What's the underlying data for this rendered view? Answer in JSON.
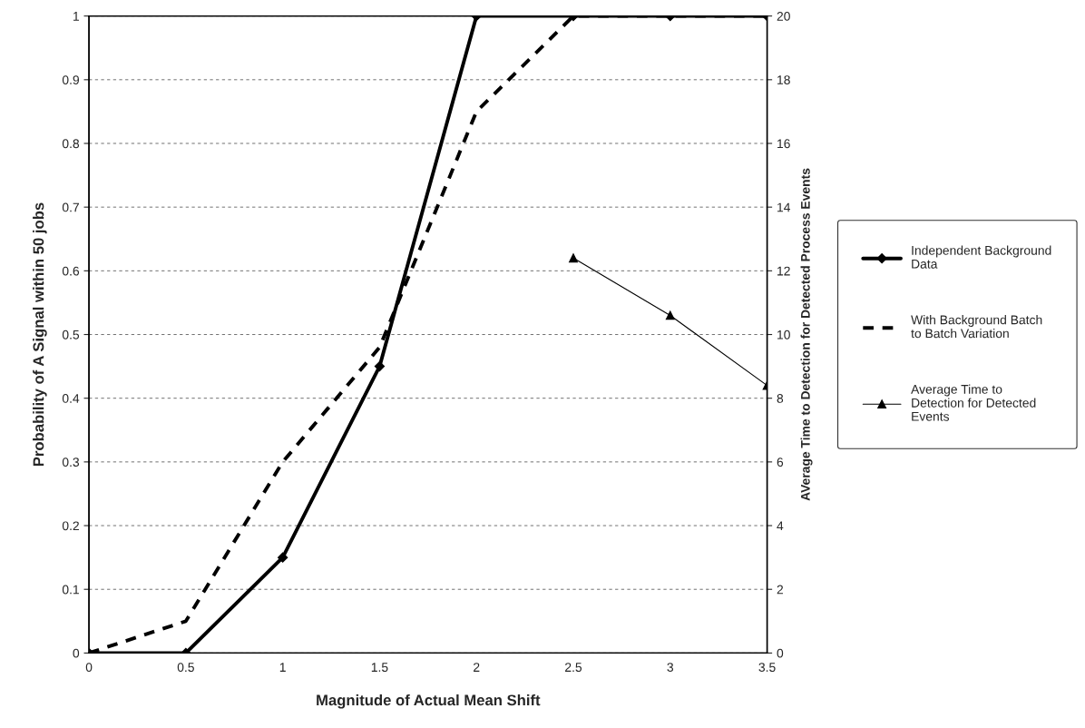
{
  "chart_data": {
    "type": "line",
    "xlabel": "Magnitude of Actual Mean Shift",
    "ylabel": "Probability of A Signal within 50 jobs",
    "y2label": "AVerage Time to Detection for Detected Process Events",
    "x": [
      0,
      0.5,
      1,
      1.5,
      2,
      2.5,
      3,
      3.5
    ],
    "series": [
      {
        "name": "Independent Background Data",
        "color": "#000000",
        "line_style": "solid",
        "marker": "diamond",
        "values": [
          0,
          0,
          0.15,
          0.45,
          1,
          1,
          1,
          1
        ]
      },
      {
        "name": "With Background Batch to Batch Variation",
        "color": "#000000",
        "line_style": "dashed",
        "marker": "none",
        "values": [
          0,
          0.05,
          0.3,
          0.48,
          0.85,
          1,
          1,
          1
        ]
      },
      {
        "name": "Average Time to Detection for Detected Events",
        "color": "#000000",
        "line_style": "solid",
        "marker": "triangle",
        "axis": "y2",
        "values": [
          null,
          null,
          null,
          null,
          null,
          12.4,
          10.6,
          8.4
        ]
      }
    ],
    "xlim": [
      0,
      3.5
    ],
    "xticks": [
      0,
      0.5,
      1,
      1.5,
      2,
      2.5,
      3,
      3.5
    ],
    "ylim": [
      0,
      1
    ],
    "yticks": [
      0,
      0.1,
      0.2,
      0.3,
      0.4,
      0.5,
      0.6,
      0.7,
      0.8,
      0.9,
      1
    ],
    "y2lim": [
      0,
      20
    ],
    "y2ticks": [
      0,
      2,
      4,
      6,
      8,
      10,
      12,
      14,
      16,
      18,
      20
    ],
    "grid": "y",
    "legend": "right"
  }
}
